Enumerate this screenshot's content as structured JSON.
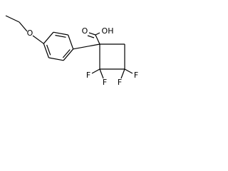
{
  "atom_labels": [
    "O",
    "O",
    "OH",
    "F",
    "F",
    "F",
    "F"
  ]
}
